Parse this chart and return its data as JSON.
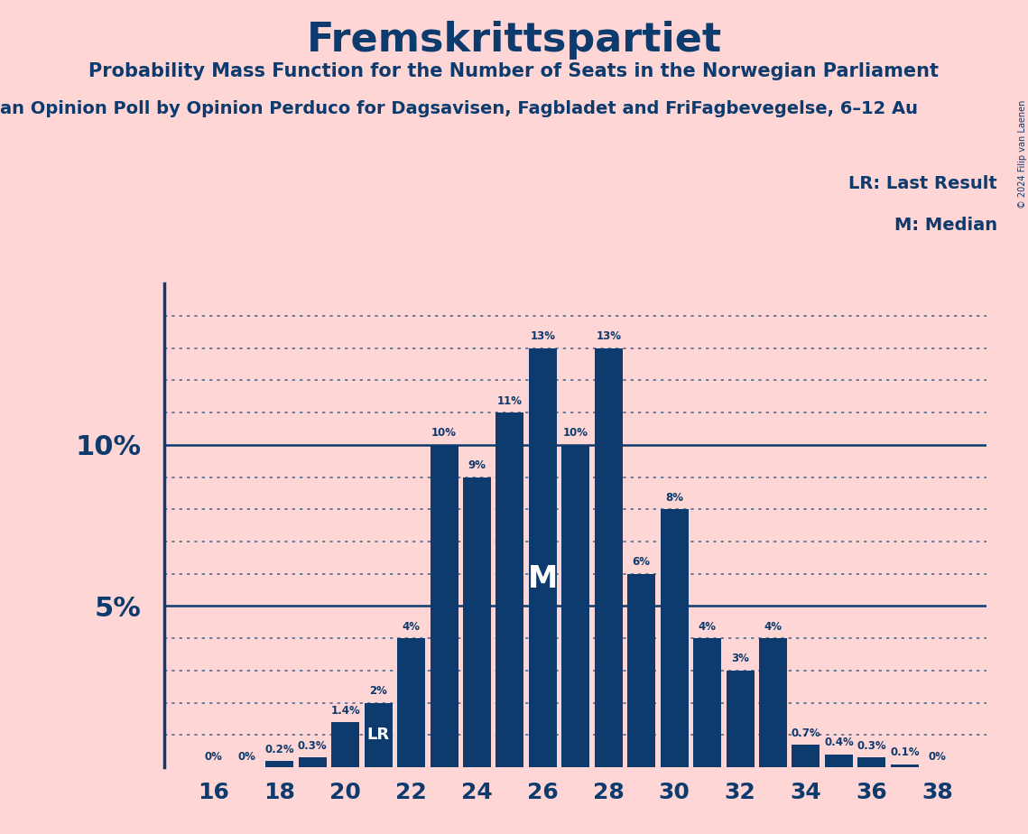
{
  "title": "Fremskrittspartiet",
  "subtitle": "Probability Mass Function for the Number of Seats in the Norwegian Parliament",
  "source_line": "an Opinion Poll by Opinion Perduco for Dagsavisen, Fagbladet and FriFagbevegelse, 6–12 Au",
  "copyright": "© 2024 Filip van Laenen",
  "background_color": "#ffd6d6",
  "bar_color": "#0d3b6e",
  "text_color": "#0d3b6e",
  "seats": [
    16,
    17,
    18,
    19,
    20,
    21,
    22,
    23,
    24,
    25,
    26,
    27,
    28,
    29,
    30,
    31,
    32,
    33,
    34,
    35,
    36,
    37,
    38
  ],
  "probabilities": [
    0.0,
    0.0,
    0.2,
    0.3,
    1.4,
    2.0,
    4.0,
    10.0,
    9.0,
    11.0,
    13.0,
    10.0,
    13.0,
    6.0,
    8.0,
    4.0,
    3.0,
    4.0,
    0.7,
    0.4,
    0.3,
    0.1,
    0.0
  ],
  "labels": [
    "0%",
    "0%",
    "0.2%",
    "0.3%",
    "1.4%",
    "2%",
    "4%",
    "10%",
    "9%",
    "11%",
    "13%",
    "10%",
    "13%",
    "6%",
    "8%",
    "4%",
    "3%",
    "4%",
    "0.7%",
    "0.4%",
    "0.3%",
    "0.1%",
    "0%"
  ],
  "median_seat": 26,
  "last_result_seat": 21,
  "xtick_seats": [
    16,
    18,
    20,
    22,
    24,
    26,
    28,
    30,
    32,
    34,
    36,
    38
  ],
  "legend_lr": "LR: Last Result",
  "legend_m": "M: Median"
}
